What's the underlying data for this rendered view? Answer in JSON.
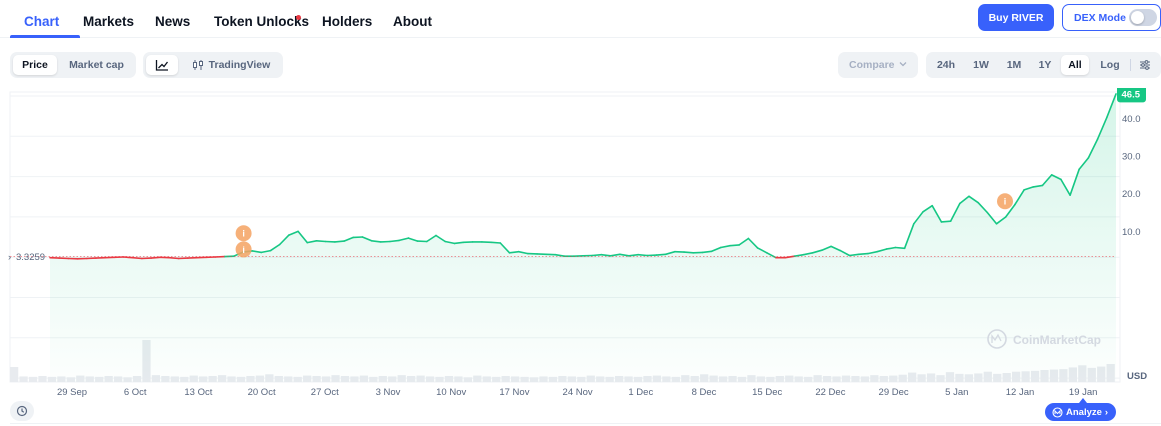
{
  "nav": {
    "tabs": [
      {
        "label": "Chart",
        "active": true
      },
      {
        "label": "Markets"
      },
      {
        "label": "News"
      },
      {
        "label": "Token Unlocks",
        "badge": "red-dot"
      },
      {
        "label": "Holders"
      },
      {
        "label": "About"
      }
    ],
    "buy_label": "Buy RIVER",
    "dex_label": "DEX Mode",
    "dex_mode_on": false
  },
  "toolbar": {
    "metric_tabs": [
      "Price",
      "Market cap"
    ],
    "metric_active": "Price",
    "chart_style_icon": "line-chart-icon",
    "tradingview_label": "TradingView",
    "tradingview_icon": "candlestick-icon",
    "compare_label": "Compare",
    "ranges": [
      "24h",
      "1W",
      "1M",
      "1Y",
      "All",
      "Log"
    ],
    "range_active": "All",
    "settings_icon": "sliders-icon"
  },
  "colors": {
    "accent": "#3861fb",
    "up": "#16c784",
    "down": "#ea3943",
    "event_marker": "#f4a261"
  },
  "watermark": "CoinMarketCap",
  "currency_label": "USD",
  "analyze_label": "Analyze",
  "chart_data": {
    "type": "line",
    "y_scale": "linear",
    "ylim": [
      -30,
      47
    ],
    "y_ticks": [
      10.0,
      20.0,
      30.0,
      40.0
    ],
    "y_tick_labels": [
      "10.0",
      "20.0",
      "30.0",
      "40.0"
    ],
    "x_tick_labels": [
      "29 Sep",
      "6 Oct",
      "13 Oct",
      "20 Oct",
      "27 Oct",
      "3 Nov",
      "10 Nov",
      "17 Nov",
      "24 Nov",
      "1 Dec",
      "8 Dec",
      "15 Dec",
      "22 Dec",
      "29 Dec",
      "5 Jan",
      "12 Jan",
      "19 Jan"
    ],
    "reference_price": 3.3259,
    "reference_label": "3.3259",
    "current_price": 46.5,
    "current_label": "46.5",
    "grid": true,
    "series": [
      {
        "values": [
          3.0,
          2.9,
          2.8,
          2.7,
          2.8,
          2.9,
          3.0,
          3.1,
          3.2,
          3.0,
          2.8,
          2.9,
          3.1,
          3.0,
          2.8,
          2.9,
          3.0,
          3.1,
          3.2,
          3.3,
          3.4,
          4.5,
          4.8,
          4.4,
          4.9,
          6.5,
          9.0,
          10.0,
          7.0,
          7.5,
          7.3,
          7.2,
          7.4,
          8.4,
          8.5,
          7.5,
          7.2,
          7.3,
          7.6,
          8.2,
          7.4,
          7.3,
          8.9,
          7.3,
          6.8,
          7.1,
          7.2,
          7.2,
          7.1,
          6.9,
          4.3,
          4.6,
          4.1,
          4.0,
          3.9,
          3.8,
          3.4,
          3.4,
          3.5,
          3.6,
          3.8,
          3.5,
          3.9,
          3.5,
          3.8,
          3.6,
          3.7,
          3.9,
          4.6,
          4.5,
          4.3,
          4.4,
          4.7,
          5.7,
          6.2,
          6.4,
          8.1,
          5.6,
          4.3,
          3.0,
          3.0,
          3.4,
          3.8,
          4.3,
          5.0,
          6.0,
          4.9,
          3.6,
          3.9,
          4.1,
          4.6,
          5.3,
          5.7,
          5.5,
          12.0,
          15.2,
          16.8,
          12.5,
          12.7,
          17.4,
          19.3,
          17.6,
          15.0,
          12.0,
          13.8,
          17.1,
          21.0,
          21.8,
          22.2,
          25.0,
          23.8,
          19.6,
          26.5,
          29.5,
          34.5,
          40.2,
          46.5
        ]
      }
    ],
    "events": [
      {
        "x_label": "20 Oct",
        "value": 9.5,
        "icon": "info-icon"
      },
      {
        "x_label": "20 Oct",
        "value": 5.2,
        "icon": "info-icon"
      },
      {
        "x_label": "12 Jan",
        "value": 18.0,
        "icon": "info-icon"
      }
    ],
    "volume": [
      3.5,
      1.3,
      1.2,
      1.4,
      1.2,
      1.3,
      1.1,
      1.5,
      1.3,
      1.2,
      1.4,
      1.3,
      1.1,
      1.4,
      9.8,
      1.6,
      1.4,
      1.3,
      1.2,
      1.5,
      1.3,
      1.4,
      1.6,
      1.3,
      1.2,
      1.4,
      1.5,
      1.8,
      1.4,
      1.3,
      1.2,
      1.5,
      1.4,
      1.3,
      1.6,
      1.4,
      1.3,
      1.5,
      1.2,
      1.4,
      1.3,
      1.6,
      1.4,
      1.5,
      1.3,
      1.2,
      1.4,
      1.3,
      1.1,
      1.5,
      1.3,
      1.2,
      1.4,
      1.3,
      1.2,
      1.1,
      1.3,
      1.2,
      1.4,
      1.3,
      1.2,
      1.5,
      1.3,
      1.2,
      1.4,
      1.3,
      1.2,
      1.4,
      1.5,
      1.3,
      1.2,
      1.6,
      1.4,
      1.8,
      1.5,
      1.3,
      1.4,
      1.2,
      1.6,
      1.3,
      1.2,
      1.4,
      1.5,
      1.3,
      1.2,
      1.6,
      1.4,
      1.3,
      1.5,
      1.4,
      1.3,
      1.6,
      1.4,
      1.5,
      1.7,
      2.2,
      1.8,
      2.0,
      1.6,
      2.3,
      1.9,
      1.8,
      2.0,
      2.4,
      1.9,
      2.1,
      2.4,
      2.5,
      2.6,
      2.8,
      2.9,
      3.0,
      3.4,
      3.9,
      3.3,
      3.6,
      4.2
    ]
  }
}
